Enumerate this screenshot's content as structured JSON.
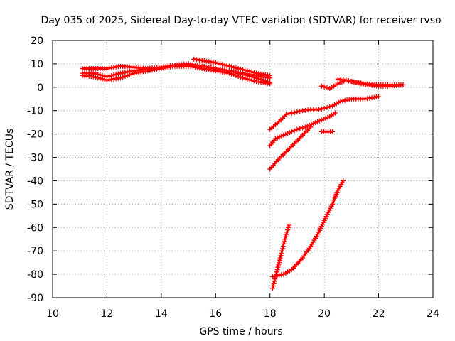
{
  "chart_data": {
    "type": "scatter",
    "title": "Day 035 of 2025, Sidereal Day-to-day VTEC variation (SDTVAR) for receiver rvso",
    "xlabel": "GPS time / hours",
    "ylabel": "SDTVAR / TECUs",
    "xlim": [
      10,
      24
    ],
    "ylim": [
      -90,
      20
    ],
    "x_ticks": [
      10,
      12,
      14,
      16,
      18,
      20,
      22,
      24
    ],
    "y_ticks": [
      -90,
      -80,
      -70,
      -60,
      -50,
      -40,
      -30,
      -20,
      -10,
      0,
      10,
      20
    ],
    "grid": true,
    "marker": "plus",
    "color": "#ff0000",
    "series": [
      {
        "x": [
          11.1,
          11.5,
          12.0,
          12.5,
          13.0,
          13.5,
          14.0,
          14.5,
          15.0,
          15.5,
          16.0,
          16.5,
          17.0,
          17.5,
          18.0
        ],
        "y": [
          8,
          8,
          8,
          9,
          8.5,
          8,
          8.5,
          9.5,
          9.5,
          9,
          8,
          7,
          6,
          5,
          4
        ]
      },
      {
        "x": [
          11.1,
          11.5,
          12.0,
          12.5,
          13.0,
          13.5,
          14.0,
          14.5,
          15.0,
          15.5,
          16.0,
          16.5,
          17.0,
          17.5,
          18.0
        ],
        "y": [
          6,
          6,
          4.5,
          6,
          7,
          8,
          8.5,
          9.5,
          10,
          9,
          8,
          7,
          5.5,
          4,
          2
        ]
      },
      {
        "x": [
          11.1,
          11.5,
          12.0,
          12.5,
          13.0,
          13.5,
          14.0,
          14.5,
          15.0,
          15.5,
          16.0,
          16.5,
          17.0,
          17.5,
          18.0
        ],
        "y": [
          5,
          4.5,
          3,
          4,
          6,
          7,
          8,
          9,
          9,
          8,
          7,
          6,
          4,
          2.5,
          1.5
        ]
      },
      {
        "x": [
          15.2,
          15.5,
          16.0,
          16.5,
          17.0,
          17.5,
          18.0
        ],
        "y": [
          12,
          11.5,
          10.5,
          9,
          7.5,
          6,
          5
        ]
      },
      {
        "x": [
          18.0,
          18.2,
          18.4,
          18.6,
          18.8,
          19.0,
          19.2,
          19.5,
          19.8,
          20.0,
          20.3
        ],
        "y": [
          -18,
          -16,
          -14,
          -11.5,
          -11,
          -10.5,
          -10,
          -9.5,
          -9.5,
          -9,
          -8
        ]
      },
      {
        "x": [
          20.3,
          20.6,
          21.0,
          21.5,
          22.0
        ],
        "y": [
          -8,
          -6,
          -5,
          -5,
          -4
        ]
      },
      {
        "x": [
          18.0,
          18.2,
          18.5,
          18.8,
          19.0,
          19.3,
          19.6,
          19.9,
          20.2,
          20.4
        ],
        "y": [
          -25,
          -22,
          -20.5,
          -19,
          -18,
          -17,
          -15.5,
          -14,
          -12.5,
          -11
        ]
      },
      {
        "x": [
          18.0,
          18.3,
          18.6,
          18.9,
          19.2,
          19.5
        ],
        "y": [
          -35,
          -31,
          -27.5,
          -24,
          -20.5,
          -17
        ]
      },
      {
        "x": [
          19.9,
          20.3
        ],
        "y": [
          -19,
          -19
        ]
      },
      {
        "x": [
          18.1,
          18.25,
          18.4,
          18.55,
          18.7
        ],
        "y": [
          -86,
          -79,
          -72,
          -65,
          -59
        ]
      },
      {
        "x": [
          18.1,
          18.5,
          18.8,
          19.2,
          19.5,
          19.8,
          20.0,
          20.3,
          20.5,
          20.7
        ],
        "y": [
          -81,
          -80,
          -78,
          -73,
          -68,
          -62,
          -57,
          -50,
          -44,
          -40
        ]
      },
      {
        "x": [
          19.9,
          20.2,
          20.5,
          20.8,
          21.0,
          21.5,
          22.0,
          22.5,
          22.9
        ],
        "y": [
          0.5,
          -0.5,
          1.5,
          3,
          2.5,
          1.5,
          1,
          1,
          1
        ]
      },
      {
        "x": [
          20.5,
          20.8,
          21.2,
          21.6,
          22.0,
          22.5,
          22.9
        ],
        "y": [
          3.5,
          3,
          2,
          1,
          0.5,
          0.5,
          1
        ]
      }
    ]
  }
}
